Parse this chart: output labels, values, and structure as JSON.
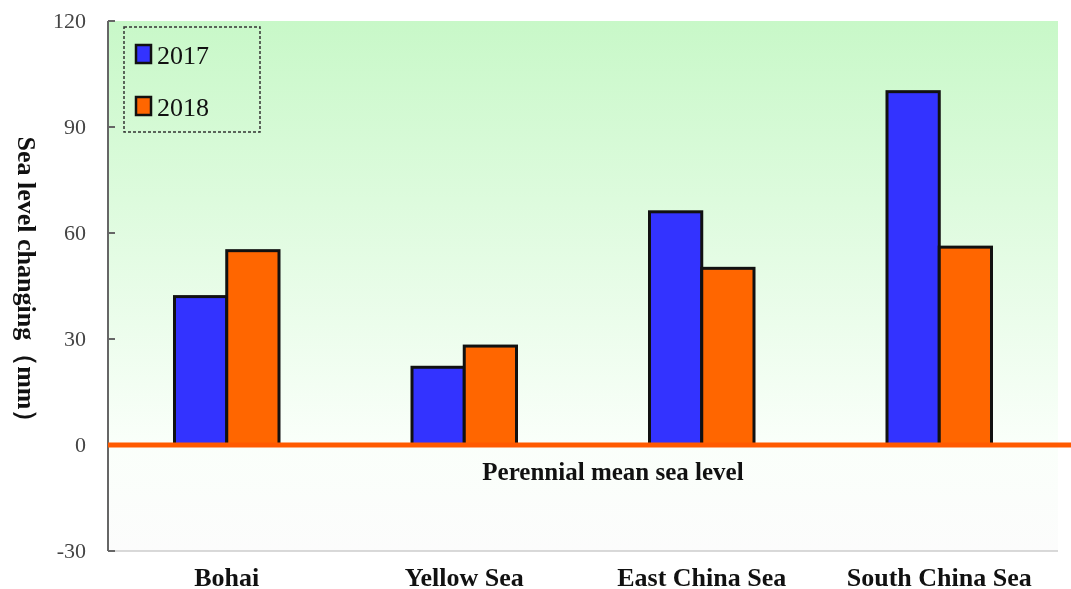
{
  "chart_data": {
    "type": "bar",
    "ylabel": "Sea level changing（mm）",
    "categories": [
      "Bohai",
      "Yellow Sea",
      "East China Sea",
      "South China Sea"
    ],
    "series": [
      {
        "name": "2017",
        "color": "#3333ff",
        "values": [
          42,
          22,
          66,
          100
        ]
      },
      {
        "name": "2018",
        "color": "#ff6600",
        "values": [
          55,
          28,
          50,
          56
        ]
      }
    ],
    "ylim": [
      -30,
      120
    ],
    "yticks": [
      -30,
      0,
      30,
      60,
      90,
      120
    ],
    "ref_lines": [
      {
        "axis": "y",
        "value": 0,
        "label": "Perennial mean sea level",
        "color": "#ff5a00",
        "line_style": "solid"
      }
    ],
    "grid": false,
    "legend": "top left"
  }
}
